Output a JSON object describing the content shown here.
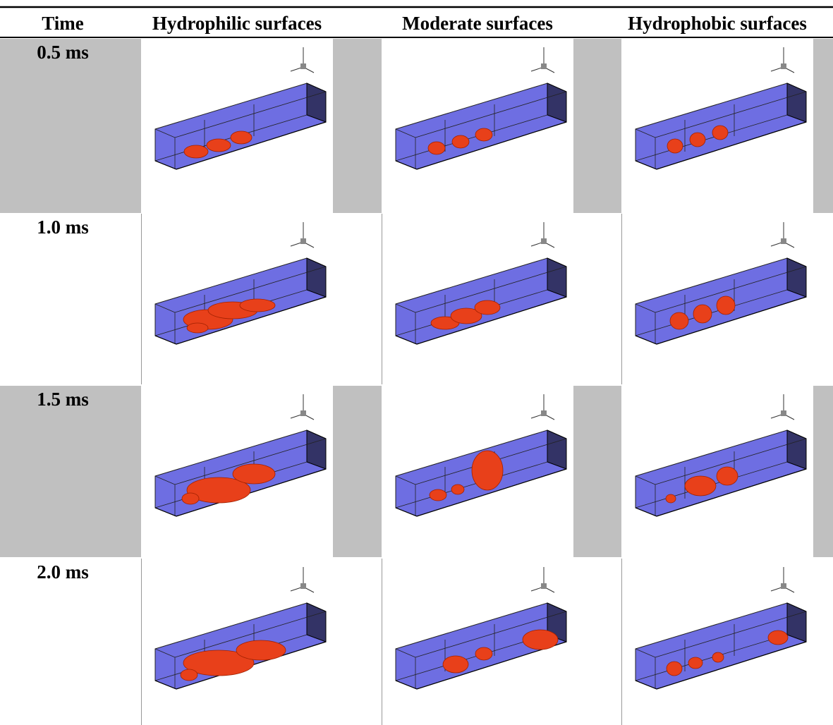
{
  "table": {
    "header": [
      "Time",
      "Hydrophilic surfaces",
      "Moderate surfaces",
      "Hydrophobic surfaces"
    ],
    "rows": [
      [
        "0.5 ms"
      ],
      [
        "1.0 ms"
      ],
      [
        "1.5 ms"
      ],
      [
        "2.0 ms"
      ]
    ]
  }
}
